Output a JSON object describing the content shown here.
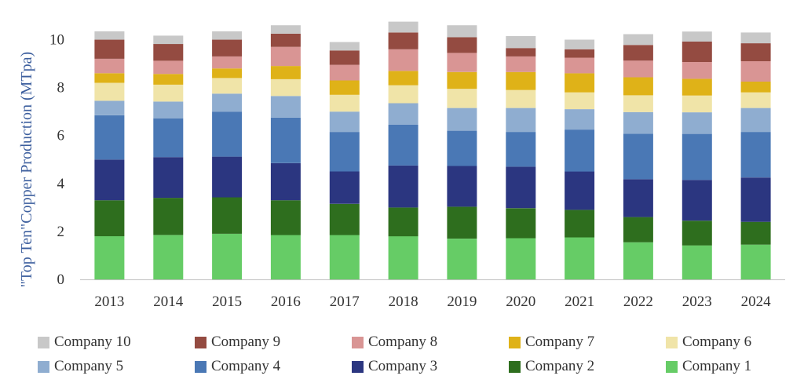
{
  "chart_data": {
    "type": "stacked-bar",
    "title": "",
    "xlabel": "",
    "ylabel": "\"Top Ten\"Copper Production (MTpa)",
    "ylim": [
      0,
      11
    ],
    "yticks": [
      0,
      2,
      4,
      6,
      8,
      10
    ],
    "categories": [
      "2013",
      "2014",
      "2015",
      "2016",
      "2017",
      "2018",
      "2019",
      "2020",
      "2021",
      "2022",
      "2023",
      "2024"
    ],
    "grid": false,
    "legend_position": "bottom",
    "series": [
      {
        "name": "Company 1",
        "color": "#66cc66",
        "values": [
          1.8,
          1.85,
          1.9,
          1.85,
          1.85,
          1.8,
          1.7,
          1.72,
          1.75,
          1.55,
          1.42,
          1.45
        ]
      },
      {
        "name": "Company 2",
        "color": "#2e6e1e",
        "values": [
          1.5,
          1.55,
          1.52,
          1.45,
          1.3,
          1.2,
          1.33,
          1.25,
          1.15,
          1.05,
          1.03,
          0.95
        ]
      },
      {
        "name": "Company 3",
        "color": "#2b3680",
        "values": [
          1.7,
          1.7,
          1.7,
          1.55,
          1.35,
          1.75,
          1.7,
          1.73,
          1.6,
          1.58,
          1.7,
          1.85
        ]
      },
      {
        "name": "Company 4",
        "color": "#4a78b5",
        "values": [
          1.85,
          1.62,
          1.88,
          1.9,
          1.65,
          1.7,
          1.47,
          1.45,
          1.75,
          1.9,
          1.92,
          1.9
        ]
      },
      {
        "name": "Company 5",
        "color": "#8fadd0",
        "values": [
          0.6,
          0.7,
          0.75,
          0.9,
          0.85,
          0.9,
          0.95,
          1.0,
          0.85,
          0.9,
          0.9,
          1.0
        ]
      },
      {
        "name": "Company 6",
        "color": "#f0e4a8",
        "values": [
          0.75,
          0.7,
          0.65,
          0.7,
          0.7,
          0.75,
          0.8,
          0.75,
          0.7,
          0.7,
          0.7,
          0.65
        ]
      },
      {
        "name": "Company 7",
        "color": "#dfb218",
        "values": [
          0.4,
          0.45,
          0.4,
          0.55,
          0.6,
          0.6,
          0.7,
          0.75,
          0.8,
          0.75,
          0.7,
          0.45
        ]
      },
      {
        "name": "Company 8",
        "color": "#d99594",
        "values": [
          0.6,
          0.55,
          0.5,
          0.8,
          0.65,
          0.9,
          0.8,
          0.65,
          0.65,
          0.7,
          0.7,
          0.85
        ]
      },
      {
        "name": "Company 9",
        "color": "#944b41",
        "values": [
          0.8,
          0.7,
          0.7,
          0.55,
          0.6,
          0.7,
          0.65,
          0.35,
          0.35,
          0.65,
          0.85,
          0.75
        ]
      },
      {
        "name": "Company 10",
        "color": "#c8c8c8",
        "values": [
          0.35,
          0.35,
          0.35,
          0.35,
          0.35,
          0.45,
          0.5,
          0.5,
          0.4,
          0.45,
          0.42,
          0.45
        ]
      }
    ],
    "legend_order": [
      "Company 10",
      "Company 9",
      "Company 8",
      "Company 7",
      "Company 6",
      "Company 5",
      "Company 4",
      "Company 3",
      "Company 2",
      "Company 1"
    ]
  },
  "colors": {
    "axis_label": "#3d5f9e",
    "tick_text": "#333333",
    "axis_line": "#bfbfbf"
  }
}
